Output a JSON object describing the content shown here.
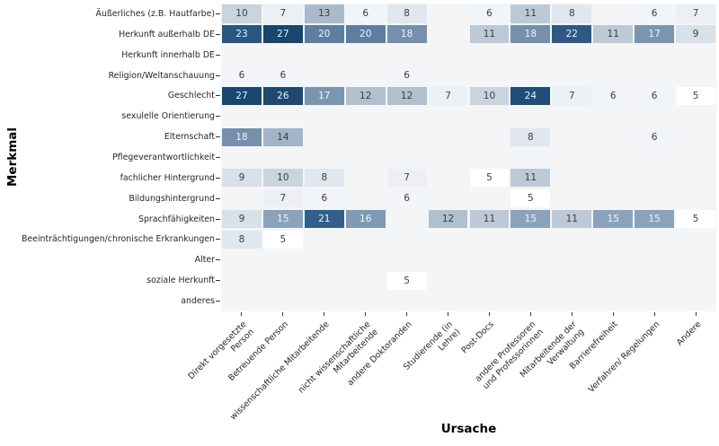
{
  "chart_data": {
    "type": "heatmap",
    "xlabel": "Ursache",
    "ylabel": "Merkmal",
    "plot_background": "#f4f5f6",
    "figure_background": "#ffffff",
    "rows": [
      "Äußerliches (z.B. Hautfarbe)",
      "Herkunft außerhalb DE",
      "Herkunft innerhalb DE",
      "Religion/Weltanschauung",
      "Geschlecht",
      "sexulelle Orientierung",
      "Elternschaft",
      "Pflegeverantwortlichkeit",
      "fachlicher Hintergrund",
      "Bildungshintergrund",
      "Sprachfähigkeiten",
      "Beeinträchtigungen/chronische Erkrankungen",
      "Alter",
      "soziale Herkunft",
      "anderes"
    ],
    "columns": [
      "Direkt vorgesetzte\nPerson",
      "Betreuende Person",
      "wissenschaftliche Mitarbeitende",
      "nicht wissenschaftliche\nMitarbeitende",
      "andere Doktoranden",
      "Studierende (in\nLehre)",
      "Post-Docs",
      "andere Professoren\nund Professorinnen",
      "Mitarbeitende der\nVerwaltung",
      "Barrierefreiheit",
      "Verfahren/ Regelungen",
      "Andere"
    ],
    "matrix": [
      [
        10,
        7,
        13,
        6,
        8,
        null,
        6,
        11,
        8,
        null,
        6,
        7
      ],
      [
        23,
        27,
        20,
        20,
        18,
        null,
        11,
        18,
        22,
        11,
        17,
        9
      ],
      [
        null,
        null,
        null,
        null,
        null,
        null,
        null,
        null,
        null,
        null,
        null,
        null
      ],
      [
        6,
        6,
        null,
        null,
        6,
        null,
        null,
        null,
        null,
        null,
        null,
        null
      ],
      [
        27,
        26,
        17,
        12,
        12,
        7,
        10,
        24,
        7,
        6,
        6,
        5
      ],
      [
        null,
        null,
        null,
        null,
        null,
        null,
        null,
        null,
        null,
        null,
        null,
        null
      ],
      [
        18,
        14,
        null,
        null,
        null,
        null,
        null,
        8,
        null,
        null,
        6,
        null
      ],
      [
        null,
        null,
        null,
        null,
        null,
        null,
        null,
        null,
        null,
        null,
        null,
        null
      ],
      [
        9,
        10,
        8,
        null,
        7,
        null,
        5,
        11,
        null,
        null,
        null,
        null
      ],
      [
        null,
        7,
        6,
        null,
        6,
        null,
        null,
        5,
        null,
        null,
        null,
        null
      ],
      [
        9,
        15,
        21,
        16,
        null,
        12,
        11,
        15,
        11,
        15,
        15,
        5
      ],
      [
        8,
        5,
        null,
        null,
        null,
        null,
        null,
        null,
        null,
        null,
        null,
        null
      ],
      [
        null,
        null,
        null,
        null,
        null,
        null,
        null,
        null,
        null,
        null,
        null,
        null
      ],
      [
        null,
        null,
        null,
        null,
        5,
        null,
        null,
        null,
        null,
        null,
        null,
        null
      ],
      [
        null,
        null,
        null,
        null,
        null,
        null,
        null,
        null,
        null,
        null,
        null,
        null
      ]
    ],
    "value_range": [
      5,
      27
    ],
    "color_map": {
      "5": "#ffffff",
      "6": "#f1f4f8",
      "7": "#ecf0f5",
      "8": "#e0e7ee",
      "9": "#d8e0e9",
      "10": "#c9d4df",
      "11": "#bcc9d6",
      "12": "#b0c0cf",
      "13": "#a9bbcb",
      "14": "#a2b5c8",
      "15": "#8ba3ba",
      "16": "#7f9ab4",
      "17": "#7a95b0",
      "18": "#7590ac",
      "20": "#5d7ea0",
      "21": "#33608a",
      "22": "#2d5a84",
      "23": "#2a5781",
      "24": "#204e78",
      "26": "#1c4871",
      "27": "#17466f"
    },
    "value_text_threshold": 15,
    "text_color_dark": "#3d3d3d",
    "text_color_light": "#f2f4f6",
    "tick_color": "#333333"
  }
}
